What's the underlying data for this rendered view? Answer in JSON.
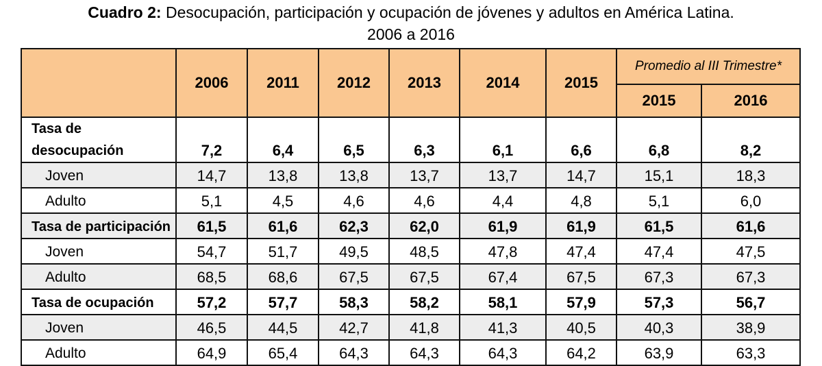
{
  "title": {
    "prefix": "Cuadro 2:",
    "text": "Desocupación, participación y ocupación de jóvenes y adultos en América Latina.",
    "line2": "2006 a 2016"
  },
  "header": {
    "years": [
      "2006",
      "2011",
      "2012",
      "2013",
      "2014",
      "2015"
    ],
    "group_label": "Promedio al III Trimestre*",
    "group_years": [
      "2015",
      "2016"
    ]
  },
  "rows": [
    {
      "label": "Tasa de desocupación",
      "bold": true,
      "values": [
        "7,2",
        "6,4",
        "6,5",
        "6,3",
        "6,1",
        "6,6",
        "6,8",
        "8,2"
      ]
    },
    {
      "label": "Joven",
      "values": [
        "14,7",
        "13,8",
        "13,8",
        "13,7",
        "13,7",
        "14,7",
        "15,1",
        "18,3"
      ]
    },
    {
      "label": "Adulto",
      "values": [
        "5,1",
        "4,5",
        "4,6",
        "4,6",
        "4,4",
        "4,8",
        "5,1",
        "6,0"
      ]
    },
    {
      "label": "Tasa de participación",
      "bold": true,
      "values": [
        "61,5",
        "61,6",
        "62,3",
        "62,0",
        "61,9",
        "61,9",
        "61,5",
        "61,6"
      ]
    },
    {
      "label": "Joven",
      "values": [
        "54,7",
        "51,7",
        "49,5",
        "48,5",
        "47,8",
        "47,4",
        "47,4",
        "47,5"
      ]
    },
    {
      "label": "Adulto",
      "values": [
        "68,5",
        "68,6",
        "67,5",
        "67,5",
        "67,4",
        "67,5",
        "67,3",
        "67,3"
      ]
    },
    {
      "label": "Tasa de ocupación",
      "bold": true,
      "values": [
        "57,2",
        "57,7",
        "58,3",
        "58,2",
        "58,1",
        "57,9",
        "57,3",
        "56,7"
      ]
    },
    {
      "label": "Joven",
      "values": [
        "46,5",
        "44,5",
        "42,7",
        "41,8",
        "41,3",
        "40,5",
        "40,3",
        "38,9"
      ]
    },
    {
      "label": "Adulto",
      "values": [
        "64,9",
        "65,4",
        "64,3",
        "64,3",
        "64,3",
        "64,2",
        "63,9",
        "63,3"
      ]
    }
  ],
  "colors": {
    "header_bg": "#FAC791",
    "stripe_bg": "#EDEDED"
  }
}
